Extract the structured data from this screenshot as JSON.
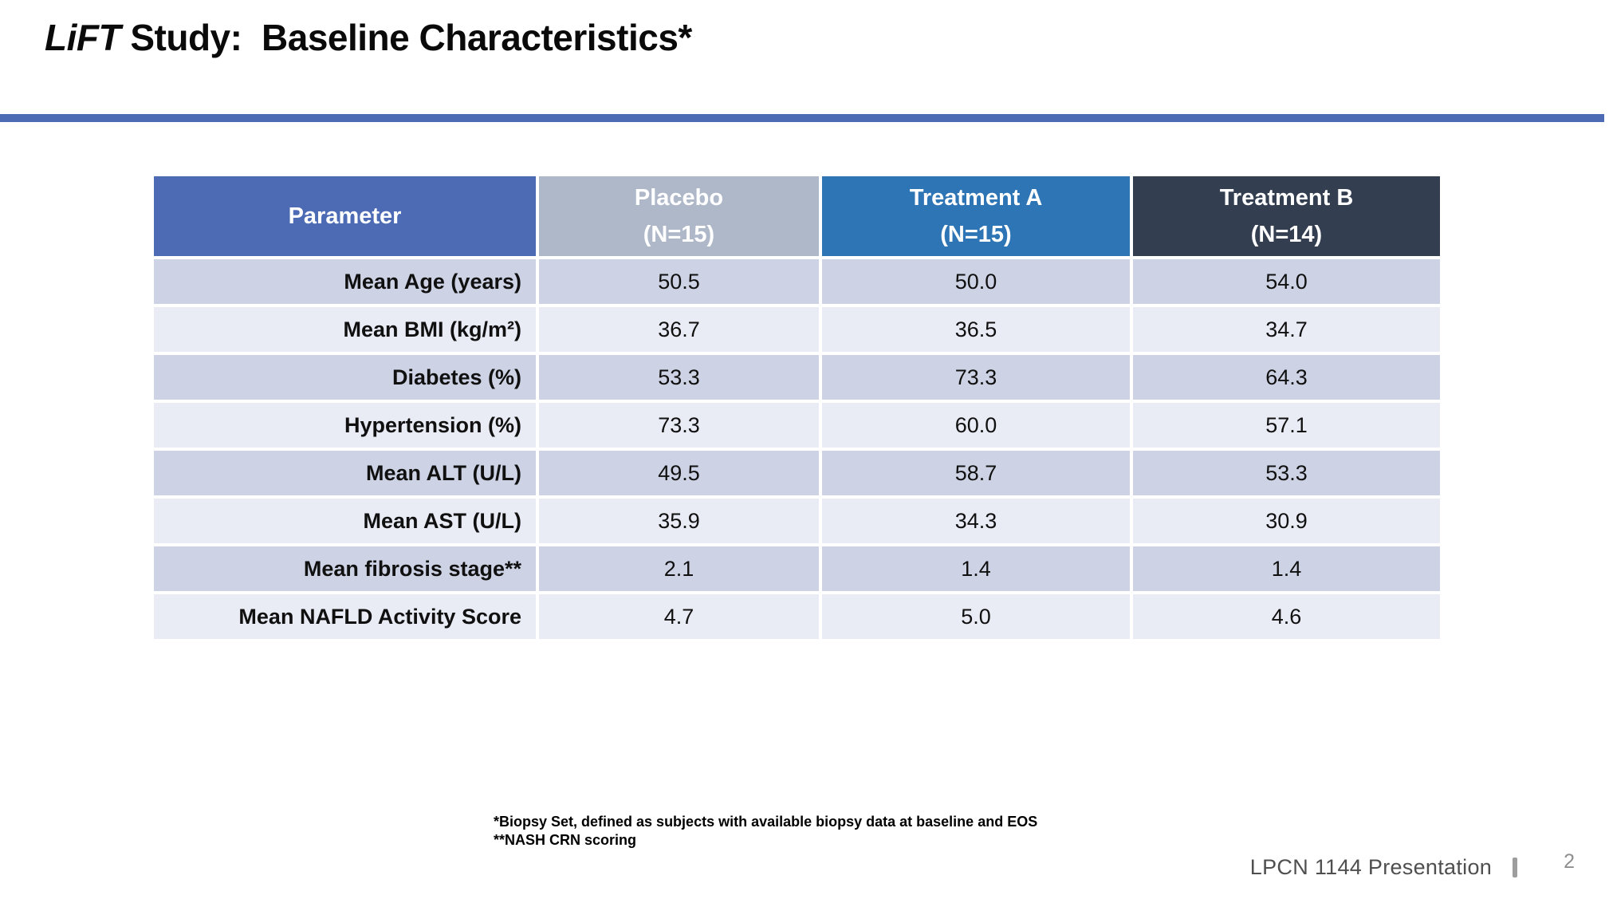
{
  "title": {
    "italic": "LiFT",
    "rest": " Study:  Baseline Characteristics*"
  },
  "colors": {
    "accent": "#4d6bb5",
    "header_parameter": "#4d6bb5",
    "header_placebo": "#afb8c9",
    "header_treatment_a": "#2e75b6",
    "header_treatment_b": "#333f50",
    "row_band_dark": "#cdd3e4",
    "row_band_light": "#e9ebf5"
  },
  "table": {
    "header_colors": [
      "#4d6bb5",
      "#afb8c9",
      "#2e75b6",
      "#333f50"
    ],
    "band_colors": {
      "odd": "#cdd3e4",
      "even": "#e9ebf5"
    },
    "header": [
      {
        "title": "Parameter",
        "subtitle": ""
      },
      {
        "title": "Placebo",
        "subtitle": "(N=15)"
      },
      {
        "title": "Treatment A",
        "subtitle": "(N=15)"
      },
      {
        "title": "Treatment B",
        "subtitle": "(N=14)"
      }
    ],
    "rows": [
      {
        "parameter": "Mean Age (years)",
        "values": [
          "50.5",
          "50.0",
          "54.0"
        ]
      },
      {
        "parameter": "Mean BMI (kg/m²)",
        "values": [
          "36.7",
          "36.5",
          "34.7"
        ]
      },
      {
        "parameter": "Diabetes (%)",
        "values": [
          "53.3",
          "73.3",
          "64.3"
        ]
      },
      {
        "parameter": "Hypertension (%)",
        "values": [
          "73.3",
          "60.0",
          "57.1"
        ]
      },
      {
        "parameter": "Mean ALT (U/L)",
        "values": [
          "49.5",
          "58.7",
          "53.3"
        ]
      },
      {
        "parameter": "Mean AST (U/L)",
        "values": [
          "35.9",
          "34.3",
          "30.9"
        ]
      },
      {
        "parameter": "Mean fibrosis stage**",
        "values": [
          "2.1",
          "1.4",
          "1.4"
        ]
      },
      {
        "parameter": "Mean NAFLD Activity Score",
        "values": [
          "4.7",
          "5.0",
          "4.6"
        ]
      }
    ]
  },
  "footnotes": [
    "*Biopsy Set, defined as subjects with available biopsy data at baseline and EOS",
    "**NASH CRN scoring"
  ],
  "footer": {
    "label": "LPCN 1144 Presentation",
    "page_number": "2"
  }
}
